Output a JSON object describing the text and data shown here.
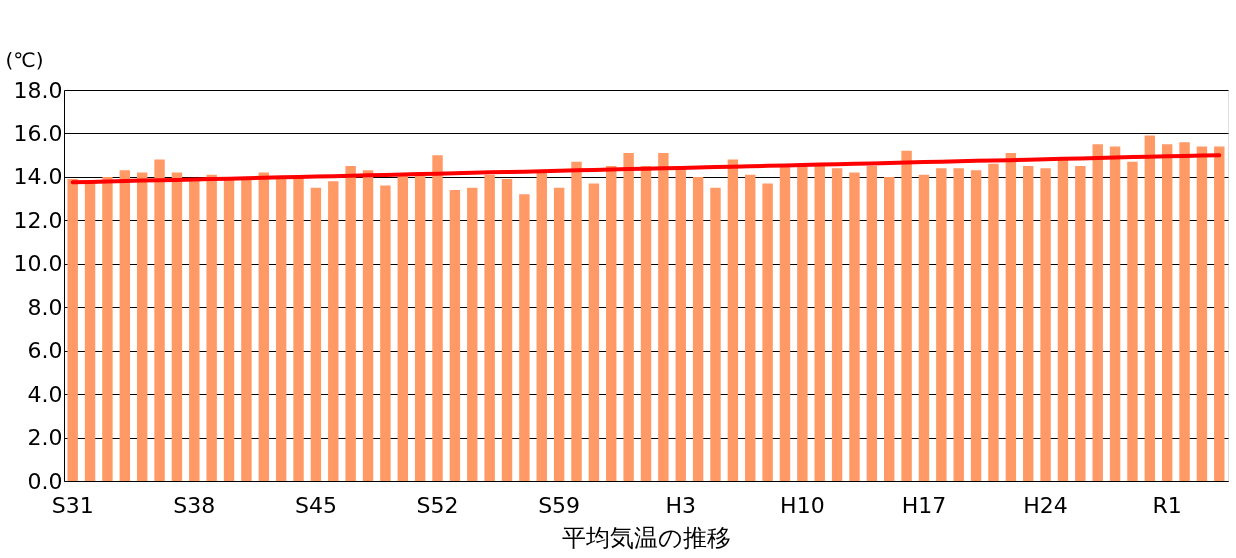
{
  "chart_data": {
    "type": "bar",
    "xlabel": "平均気温の推移",
    "ylabel": "(℃)",
    "categories": [
      "S31",
      null,
      null,
      null,
      null,
      null,
      null,
      "S38",
      null,
      null,
      null,
      null,
      null,
      null,
      "S45",
      null,
      null,
      null,
      null,
      null,
      null,
      "S52",
      null,
      null,
      null,
      null,
      null,
      null,
      "S59",
      null,
      null,
      null,
      null,
      null,
      null,
      "H3",
      null,
      null,
      null,
      null,
      null,
      null,
      "H10",
      null,
      null,
      null,
      null,
      null,
      null,
      "H17",
      null,
      null,
      null,
      null,
      null,
      null,
      "H24",
      null,
      null,
      null,
      null,
      null,
      null,
      "R1",
      null,
      null,
      null
    ],
    "series": [
      {
        "color": "#ff9966",
        "values": [
          13.9,
          13.8,
          14.0,
          14.3,
          14.2,
          14.8,
          14.2,
          13.9,
          14.1,
          13.9,
          13.9,
          14.2,
          13.9,
          14.0,
          13.5,
          13.8,
          14.5,
          14.3,
          13.6,
          14.1,
          14.1,
          15.0,
          13.4,
          13.5,
          14.1,
          13.9,
          13.2,
          14.2,
          13.5,
          14.7,
          13.7,
          14.5,
          15.1,
          14.5,
          15.1,
          14.4,
          14.0,
          13.5,
          14.8,
          14.1,
          13.7,
          14.5,
          14.5,
          14.5,
          14.4,
          14.2,
          14.5,
          14.0,
          15.2,
          14.1,
          14.4,
          14.4,
          14.3,
          14.6,
          15.1,
          14.5,
          14.4,
          14.8,
          14.5,
          15.5,
          15.4,
          14.7,
          15.9,
          15.5,
          15.6,
          15.4,
          15.4
        ]
      },
      {
        "type": "line",
        "color": "#ff0000",
        "values": [
          13.75,
          13.77,
          13.79,
          13.81,
          13.83,
          13.84,
          13.86,
          13.88,
          13.9,
          13.92,
          13.94,
          13.96,
          13.98,
          14.0,
          14.02,
          14.03,
          14.05,
          14.07,
          14.09,
          14.11,
          14.13,
          14.15,
          14.17,
          14.19,
          14.21,
          14.22,
          14.24,
          14.26,
          14.28,
          14.3,
          14.32,
          14.34,
          14.36,
          14.38,
          14.4,
          14.41,
          14.43,
          14.45,
          14.47,
          14.49,
          14.51,
          14.53,
          14.55,
          14.57,
          14.58,
          14.6,
          14.62,
          14.64,
          14.66,
          14.68,
          14.7,
          14.72,
          14.74,
          14.76,
          14.77,
          14.79,
          14.81,
          14.83,
          14.85,
          14.87,
          14.89,
          14.91,
          14.93,
          14.95,
          14.96,
          14.98,
          15.0
        ]
      }
    ],
    "ylim": [
      0,
      18
    ],
    "yticks": [
      {
        "value": 0,
        "label": "0.0"
      },
      {
        "value": 2,
        "label": "2.0"
      },
      {
        "value": 4,
        "label": "4.0"
      },
      {
        "value": 6,
        "label": "6.0"
      },
      {
        "value": 8,
        "label": "8.0"
      },
      {
        "value": 10,
        "label": "10.0"
      },
      {
        "value": 12,
        "label": "12.0"
      },
      {
        "value": 14,
        "label": "14.0"
      },
      {
        "value": 16,
        "label": "16.0"
      },
      {
        "value": 18,
        "label": "18.0"
      }
    ],
    "grid": "y",
    "marker": "none",
    "line_style": "solid"
  }
}
